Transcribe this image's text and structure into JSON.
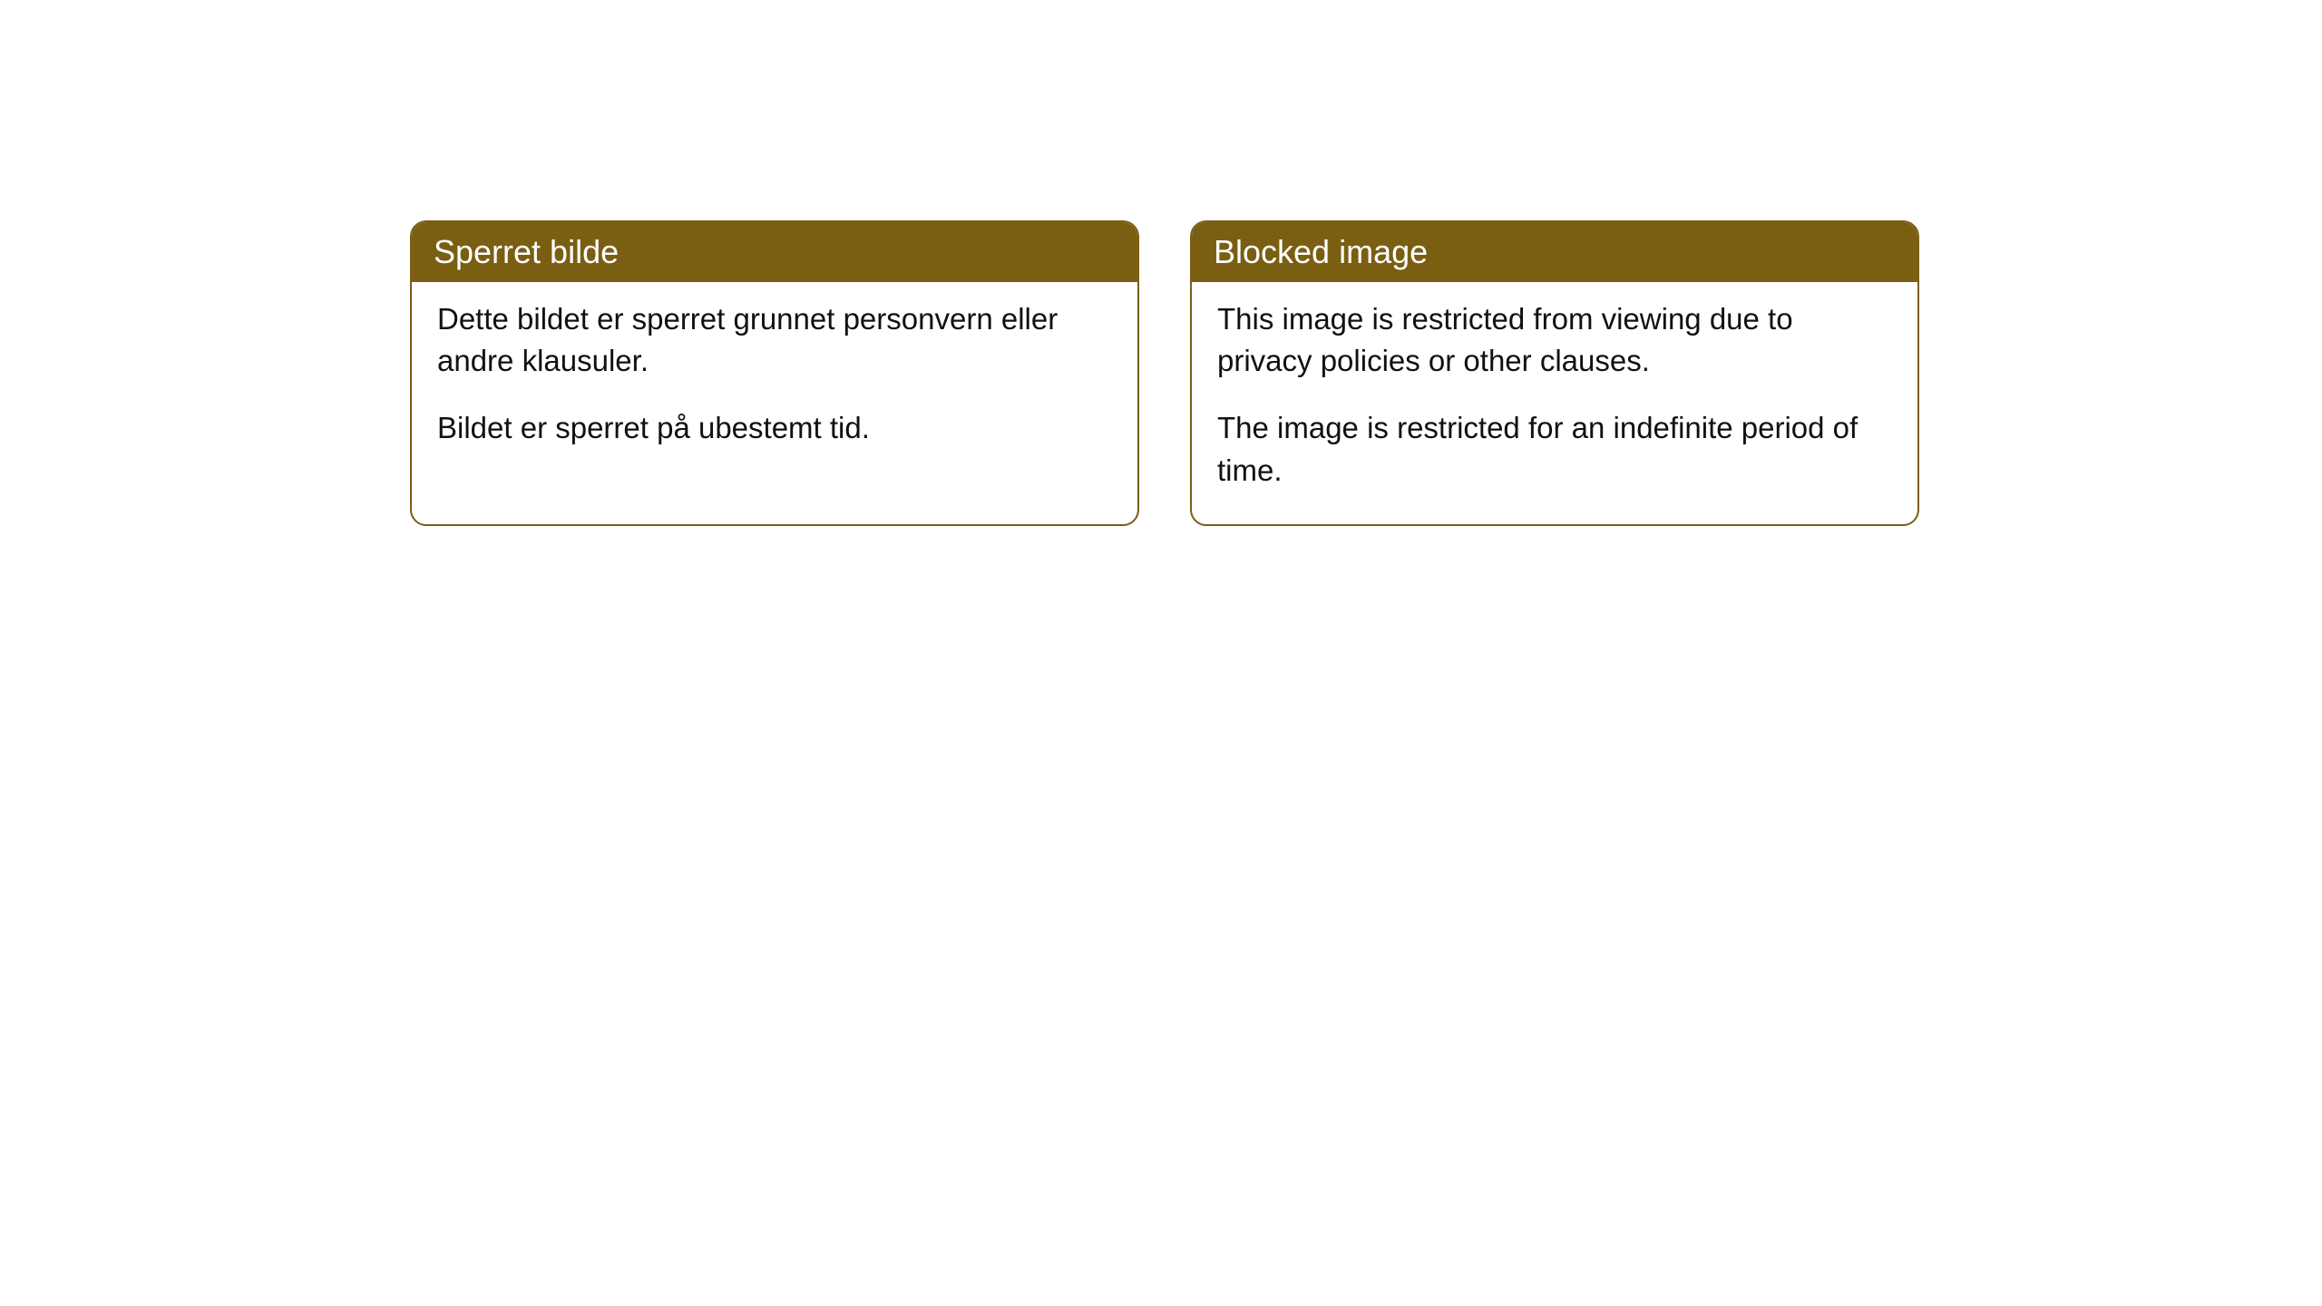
{
  "cards": [
    {
      "title": "Sperret bilde",
      "paragraph1": "Dette bildet er sperret grunnet personvern eller andre klausuler.",
      "paragraph2": "Bildet er sperret på ubestemt tid."
    },
    {
      "title": "Blocked image",
      "paragraph1": "This image is restricted from viewing due to privacy policies or other clauses.",
      "paragraph2": "The image is restricted for an indefinite period of time."
    }
  ],
  "style": {
    "header_bg": "#7a5e12",
    "header_text_color": "#ffffff",
    "border_color": "#7a5e12",
    "body_bg": "#ffffff",
    "body_text_color": "#111111",
    "border_radius": 18,
    "title_fontsize": 36,
    "body_fontsize": 33
  }
}
